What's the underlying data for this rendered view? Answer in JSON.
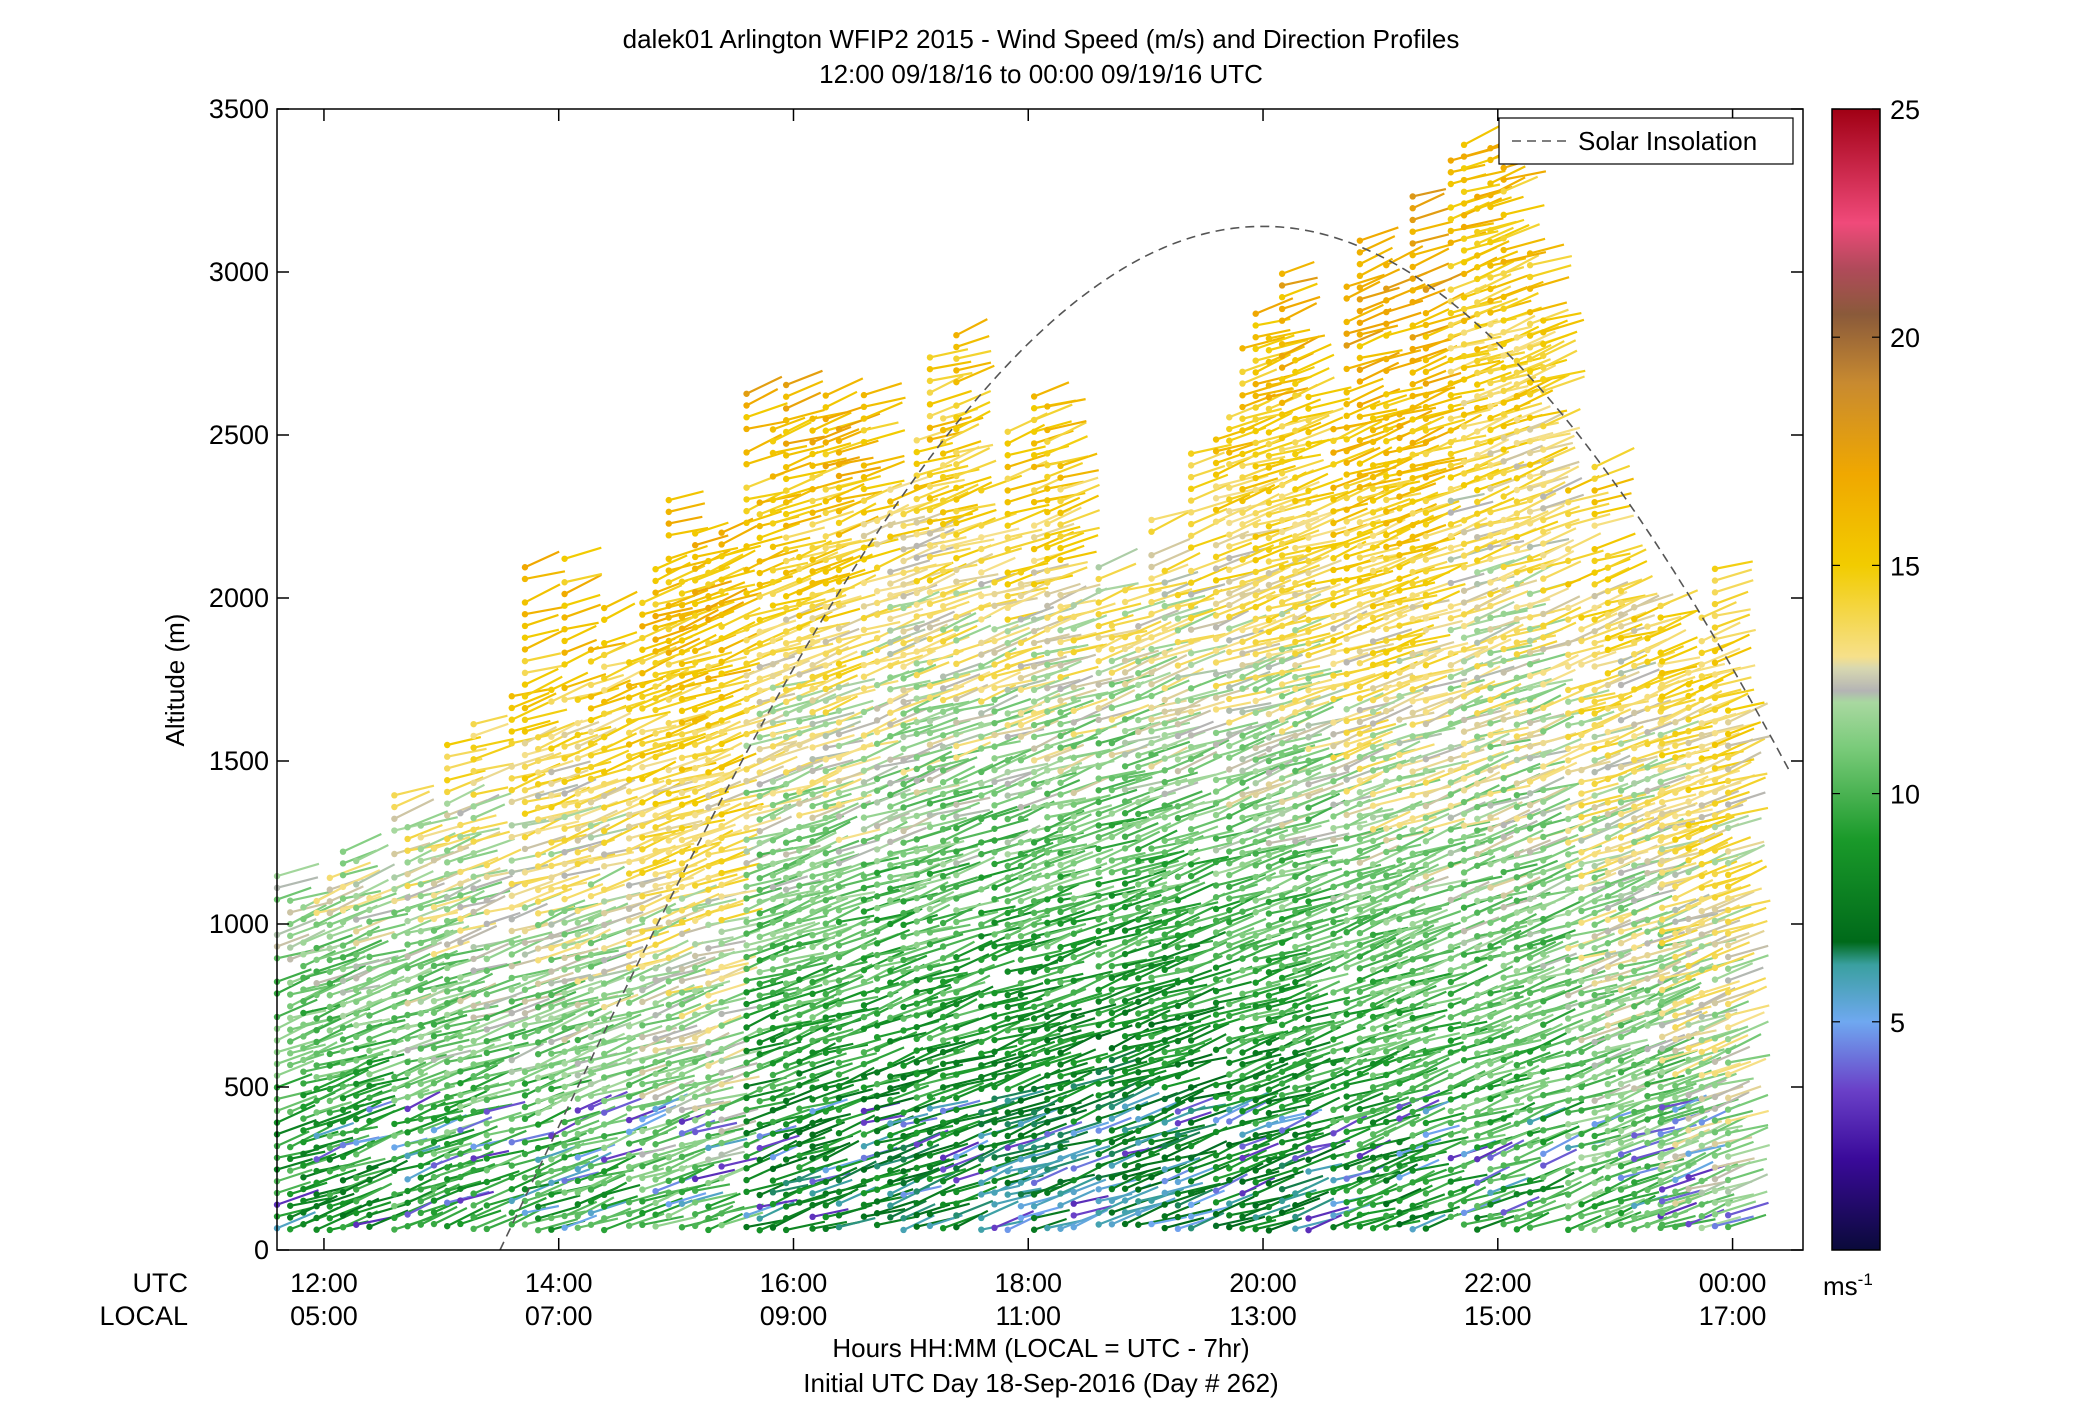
{
  "chart_data": {
    "type": "scatter",
    "title": "dalek01 Arlington WFIP2 2015 - Wind Speed (m/s) and Direction Profiles",
    "subtitle": "12:00 09/18/16 to 00:00 09/19/16  UTC",
    "ylabel": "Altitude (m)",
    "xlabel": "Hours HH:MM  (LOCAL = UTC - 7hr)",
    "xlabel2": "Initial UTC Day 18-Sep-2016 (Day # 262)",
    "row_label_utc": "UTC",
    "row_label_local": "LOCAL",
    "x_ticks_utc": [
      "12:00",
      "14:00",
      "16:00",
      "18:00",
      "20:00",
      "22:00",
      "00:00"
    ],
    "x_ticks_local": [
      "05:00",
      "07:00",
      "09:00",
      "11:00",
      "13:00",
      "15:00",
      "17:00"
    ],
    "x_tick_hours": [
      12,
      14,
      16,
      18,
      20,
      22,
      24
    ],
    "xlim": [
      11.6,
      24.6
    ],
    "y_ticks": [
      "0",
      "500",
      "1000",
      "1500",
      "2000",
      "2500",
      "3000",
      "3500"
    ],
    "ylim": [
      0,
      3500
    ],
    "legend": {
      "label": "Solar Insolation",
      "position": "top-right"
    },
    "colorbar": {
      "ticks": [
        "5",
        "10",
        "15",
        "20",
        "25"
      ],
      "tick_values": [
        5,
        10,
        15,
        20,
        25
      ],
      "range": [
        0,
        25
      ],
      "unit": "ms",
      "unit_exp": "-1"
    },
    "solar_insolation": {
      "start_hour": 13.5,
      "peak_hour": 20.0,
      "peak_altitude": 3140,
      "end_hour": 24.5,
      "end_altitude": 1440
    },
    "series": [
      {
        "x_hour": 12.0,
        "max_alt": 1360,
        "seed": 1,
        "wind": "SW",
        "low_speed": 8,
        "high_speed": 13
      },
      {
        "x_hour": 13.0,
        "max_alt": 1650,
        "seed": 2,
        "wind": "SW",
        "low_speed": 9,
        "high_speed": 14
      },
      {
        "x_hour": 14.0,
        "max_alt": 2150,
        "seed": 3,
        "wind": "SW",
        "low_speed": 9,
        "high_speed": 16
      },
      {
        "x_hour": 15.0,
        "max_alt": 2400,
        "seed": 4,
        "wind": "SW",
        "low_speed": 10,
        "high_speed": 17
      },
      {
        "x_hour": 16.0,
        "max_alt": 2760,
        "seed": 5,
        "wind": "SW",
        "low_speed": 7,
        "high_speed": 17
      },
      {
        "x_hour": 17.0,
        "max_alt": 2850,
        "seed": 6,
        "wind": "SW",
        "low_speed": 7,
        "high_speed": 16
      },
      {
        "x_hour": 18.0,
        "max_alt": 2650,
        "seed": 7,
        "wind": "SW",
        "low_speed": 6,
        "high_speed": 16
      },
      {
        "x_hour": 19.0,
        "max_alt": 2500,
        "seed": 8,
        "wind": "SW",
        "low_speed": 6,
        "high_speed": 15
      },
      {
        "x_hour": 20.0,
        "max_alt": 3100,
        "seed": 9,
        "wind": "SW",
        "low_speed": 7,
        "high_speed": 17
      },
      {
        "x_hour": 21.0,
        "max_alt": 3300,
        "seed": 10,
        "wind": "SW",
        "low_speed": 8,
        "high_speed": 18
      },
      {
        "x_hour": 22.0,
        "max_alt": 3450,
        "seed": 11,
        "wind": "SW",
        "low_speed": 9,
        "high_speed": 16
      },
      {
        "x_hour": 23.0,
        "max_alt": 2500,
        "seed": 12,
        "wind": "SW",
        "low_speed": 10,
        "high_speed": 15
      },
      {
        "x_hour": 23.8,
        "max_alt": 2100,
        "seed": 13,
        "wind": "SW",
        "low_speed": 11,
        "high_speed": 15
      }
    ]
  }
}
